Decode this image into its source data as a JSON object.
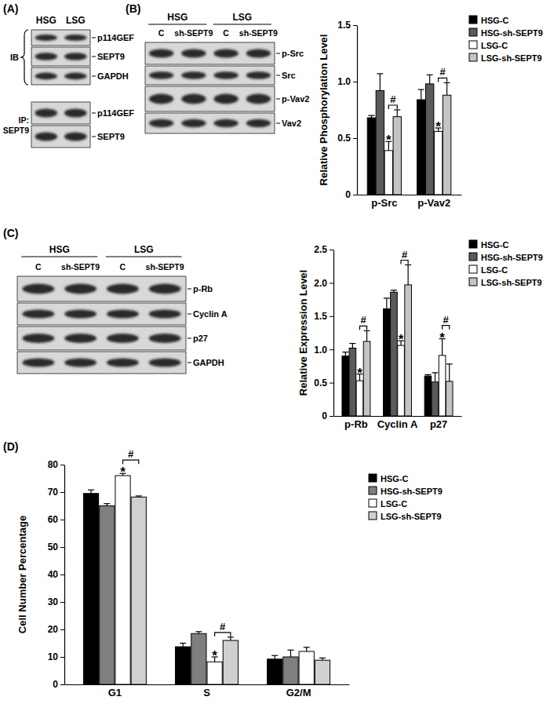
{
  "panel_labels": [
    "(A)",
    "(B)",
    "(C)",
    "(D)"
  ],
  "blots": [
    {
      "groups": [
        "HSG",
        "LSG"
      ],
      "sections": [
        {
          "label_lines": [
            "IB"
          ],
          "rows": [
            "p114GEF",
            "SEPT9",
            "GAPDH"
          ]
        },
        {
          "label_lines": [
            "IP:",
            "SEPT9"
          ],
          "rows": [
            "p114GEF",
            "SEPT9"
          ]
        }
      ]
    },
    {
      "groups": [
        "HSG",
        "LSG"
      ],
      "lanes": [
        "C",
        "sh-SEPT9",
        "C",
        "sh-SEPT9"
      ],
      "sections": [
        {
          "rows": [
            "p-Src",
            "Src",
            "p-Vav2",
            "Vav2"
          ]
        }
      ]
    },
    {
      "groups": [
        "HSG",
        "LSG"
      ],
      "lanes": [
        "C",
        "sh-SEPT9",
        "C",
        "sh-SEPT9"
      ],
      "sections": [
        {
          "rows": [
            "p-Rb",
            "Cyclin A",
            "p27",
            "GAPDH"
          ]
        }
      ]
    }
  ],
  "chart_data": [
    {
      "type": "bar",
      "ylabel": "Relative Phosphorylation Level",
      "categories": [
        "p-Src",
        "p-Vav2"
      ],
      "series": [
        {
          "name": "HSG-C",
          "color": "#000000",
          "values": [
            0.68,
            0.84
          ],
          "errors": [
            0.02,
            0.09
          ]
        },
        {
          "name": "HSG-sh-SEPT9",
          "color": "#5a5a5a",
          "values": [
            0.92,
            0.98
          ],
          "errors": [
            0.15,
            0.08
          ]
        },
        {
          "name": "LSG-C",
          "color": "#ffffff",
          "values": [
            0.39,
            0.56
          ],
          "errors": [
            0.08,
            0.03
          ]
        },
        {
          "name": "LSG-sh-SEPT9",
          "color": "#c4c4c4",
          "values": [
            0.69,
            0.88
          ],
          "errors": [
            0.06,
            0.11
          ]
        }
      ],
      "ylim": [
        0,
        1.5
      ],
      "yticks": [
        0,
        0.5,
        {
          "value": 1,
          "label": "1.0"
        },
        1.5
      ],
      "legend": "right",
      "annotations": [
        {
          "text": "*",
          "category": "p-Src",
          "series": "LSG-C"
        },
        {
          "text": "*",
          "category": "p-Vav2",
          "series": "LSG-C"
        },
        {
          "text": "#",
          "category": "p-Src",
          "series": [
            "LSG-C",
            "LSG-sh-SEPT9"
          ]
        },
        {
          "text": "#",
          "category": "p-Vav2",
          "series": [
            "LSG-C",
            "LSG-sh-SEPT9"
          ]
        }
      ]
    },
    {
      "type": "bar",
      "ylabel": "Relative Expression Level",
      "categories": [
        "p-Rb",
        "Cyclin A",
        "p27"
      ],
      "series": [
        {
          "name": "HSG-C",
          "color": "#000000",
          "values": [
            0.9,
            1.61,
            0.6
          ],
          "errors": [
            0.06,
            0.16,
            0.02
          ]
        },
        {
          "name": "HSG-sh-SEPT9",
          "color": "#5a5a5a",
          "values": [
            1.02,
            1.86,
            0.51
          ],
          "errors": [
            0.07,
            0.03,
            0.14
          ]
        },
        {
          "name": "LSG-C",
          "color": "#ffffff",
          "values": [
            0.53,
            1.06,
            0.91
          ],
          "errors": [
            0.1,
            0.07,
            0.25
          ]
        },
        {
          "name": "LSG-sh-SEPT9",
          "color": "#c4c4c4",
          "values": [
            1.12,
            1.97,
            0.52
          ],
          "errors": [
            0.16,
            0.3,
            0.26
          ]
        }
      ],
      "ylim": [
        0,
        2.5
      ],
      "yticks": [
        0,
        0.5,
        {
          "value": 1,
          "label": "1.0"
        },
        1.5,
        {
          "value": 2,
          "label": "2.0"
        },
        2.5
      ],
      "legend": "right",
      "annotations": [
        {
          "text": "*",
          "category": "p-Rb",
          "series": "LSG-C"
        },
        {
          "text": "*",
          "category": "Cyclin A",
          "series": "LSG-C"
        },
        {
          "text": "*",
          "category": "p27",
          "series": "LSG-C"
        },
        {
          "text": "#",
          "category": "p-Rb",
          "series": [
            "LSG-C",
            "LSG-sh-SEPT9"
          ]
        },
        {
          "text": "#",
          "category": "Cyclin A",
          "series": [
            "LSG-C",
            "LSG-sh-SEPT9"
          ]
        },
        {
          "text": "#",
          "category": "p27",
          "series": [
            "LSG-C",
            "LSG-sh-SEPT9"
          ]
        }
      ]
    },
    {
      "type": "bar",
      "ylabel": "Cell Number Percentage",
      "categories": [
        "G1",
        "S",
        "G2/M"
      ],
      "series": [
        {
          "name": "HSG-C",
          "color": "#000000",
          "values": [
            69.5,
            13.7,
            9.2
          ],
          "errors": [
            1.3,
            1.3,
            1.3
          ]
        },
        {
          "name": "HSG-sh-SEPT9",
          "color": "#7f7f7f",
          "values": [
            65,
            18.5,
            10
          ],
          "errors": [
            0.8,
            0.7,
            2.5
          ]
        },
        {
          "name": "LSG-C",
          "color": "#ffffff",
          "values": [
            76,
            8.2,
            12
          ],
          "errors": [
            0.8,
            1.8,
            1.5
          ]
        },
        {
          "name": "LSG-sh-SEPT9",
          "color": "#d0d0d0",
          "values": [
            68.2,
            16,
            8.8
          ],
          "errors": [
            0.4,
            1.2,
            0.8
          ]
        }
      ],
      "ylim": [
        0,
        80
      ],
      "yticks": [
        0,
        10,
        20,
        30,
        40,
        50,
        60,
        70,
        80
      ],
      "legend": "right",
      "annotations": [
        {
          "text": "*",
          "category": "G1",
          "series": "LSG-C"
        },
        {
          "text": "*",
          "category": "S",
          "series": "LSG-C"
        },
        {
          "text": "#",
          "category": "G1",
          "series": [
            "LSG-C",
            "LSG-sh-SEPT9"
          ]
        },
        {
          "text": "#",
          "category": "S",
          "series": [
            "LSG-C",
            "LSG-sh-SEPT9"
          ]
        }
      ]
    }
  ]
}
